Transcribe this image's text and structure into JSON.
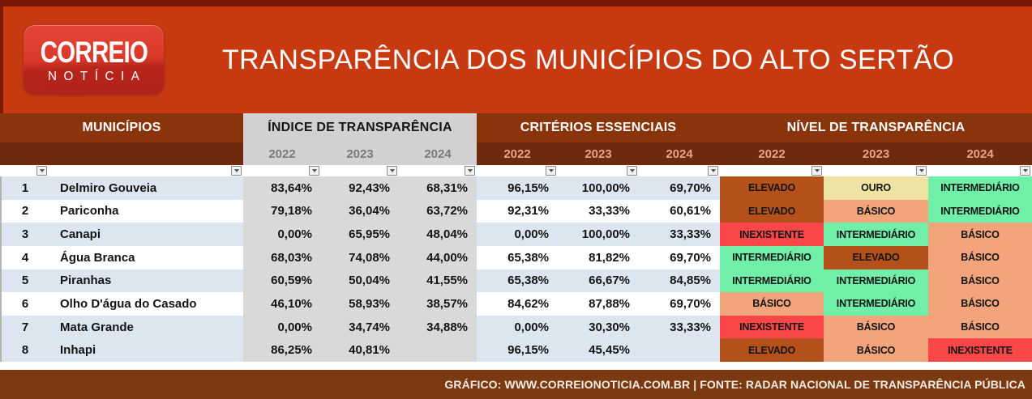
{
  "banner": {
    "logo_line1": "CORREIO",
    "logo_line2": "NOTÍCIA",
    "title": "TRANSPARÊNCIA DOS MUNICÍPIOS DO ALTO SERTÃO"
  },
  "header": {
    "municipalities_label": "MUNICÍPIOS",
    "groups": [
      {
        "label": "ÍNDICE DE TRANSPARÊNCIA"
      },
      {
        "label": "CRITÉRIOS ESSENCIAIS"
      },
      {
        "label": "NÍVEL DE TRANSPARÊNCIA"
      }
    ],
    "years": [
      "2022",
      "2023",
      "2024"
    ]
  },
  "colors": {
    "top_strip": "#7C1605",
    "banner_bg": "#C63911",
    "band1_bg": "#8A340C",
    "band2_bg": "#6E2A0C",
    "header_gray_bg": "#D2D0D0",
    "header_gray_text": "#7B7B7B",
    "year_salmon_text": "#EDA184",
    "row_blue": "#DCE6F1",
    "indice_column_bg": "#D9D9D9",
    "footer_bg": "#7B3911",
    "levels": {
      "ELEVADO": "#B4511B",
      "OURO": "#EFE3A3",
      "INTERMEDIÁRIO": "#6FEFA8",
      "BÁSICO": "#F2A47D",
      "INEXISTENTE": "#FB4747"
    }
  },
  "chart_data": {
    "type": "table",
    "columns": [
      "#",
      "Município",
      "Índice 2022",
      "Índice 2023",
      "Índice 2024",
      "Critérios 2022",
      "Critérios 2023",
      "Critérios 2024",
      "Nível 2022",
      "Nível 2023",
      "Nível 2024"
    ],
    "rows": [
      {
        "rank": "1",
        "name": "Delmiro Gouveia",
        "shade": "blue",
        "indice": [
          "83,64%",
          "92,43%",
          "68,31%"
        ],
        "criterios": [
          "96,15%",
          "100,00%",
          "69,70%"
        ],
        "nivel": [
          "ELEVADO",
          "OURO",
          "INTERMEDIÁRIO"
        ]
      },
      {
        "rank": "2",
        "name": "Pariconha",
        "shade": "white",
        "indice": [
          "79,18%",
          "36,04%",
          "63,72%"
        ],
        "criterios": [
          "92,31%",
          "33,33%",
          "60,61%"
        ],
        "nivel": [
          "ELEVADO",
          "BÁSICO",
          "INTERMEDIÁRIO"
        ]
      },
      {
        "rank": "3",
        "name": "Canapi",
        "shade": "blue",
        "indice": [
          "0,00%",
          "65,95%",
          "48,04%"
        ],
        "criterios": [
          "0,00%",
          "100,00%",
          "33,33%"
        ],
        "nivel": [
          "INEXISTENTE",
          "INTERMEDIÁRIO",
          "BÁSICO"
        ]
      },
      {
        "rank": "4",
        "name": "Água Branca",
        "shade": "white",
        "indice": [
          "68,03%",
          "74,08%",
          "44,00%"
        ],
        "criterios": [
          "65,38%",
          "81,82%",
          "69,70%"
        ],
        "nivel": [
          "INTERMEDIÁRIO",
          "ELEVADO",
          "BÁSICO"
        ]
      },
      {
        "rank": "5",
        "name": "Piranhas",
        "shade": "blue",
        "indice": [
          "60,59%",
          "50,04%",
          "41,55%"
        ],
        "criterios": [
          "65,38%",
          "66,67%",
          "84,85%"
        ],
        "nivel": [
          "INTERMEDIÁRIO",
          "INTERMEDIÁRIO",
          "BÁSICO"
        ]
      },
      {
        "rank": "6",
        "name": "Olho D'água do Casado",
        "shade": "white",
        "indice": [
          "46,10%",
          "58,93%",
          "38,57%"
        ],
        "criterios": [
          "84,62%",
          "87,88%",
          "69,70%"
        ],
        "nivel": [
          "BÁSICO",
          "INTERMEDIÁRIO",
          "BÁSICO"
        ]
      },
      {
        "rank": "7",
        "name": "Mata Grande",
        "shade": "blue",
        "indice": [
          "0,00%",
          "34,74%",
          "34,88%"
        ],
        "criterios": [
          "0,00%",
          "30,30%",
          "33,33%"
        ],
        "nivel": [
          "INEXISTENTE",
          "BÁSICO",
          "BÁSICO"
        ]
      },
      {
        "rank": "8",
        "name": "Inhapi",
        "shade": "blue",
        "indice": [
          "86,25%",
          "40,81%",
          ""
        ],
        "criterios": [
          "96,15%",
          "45,45%",
          ""
        ],
        "nivel": [
          "ELEVADO",
          "BÁSICO",
          "INEXISTENTE"
        ]
      }
    ]
  },
  "footer": {
    "credit": "GRÁFICO: WWW.CORREIONOTICIA.COM.BR | FONTE: RADAR NACIONAL DE TRANSPARÊNCIA PÚBLICA"
  }
}
